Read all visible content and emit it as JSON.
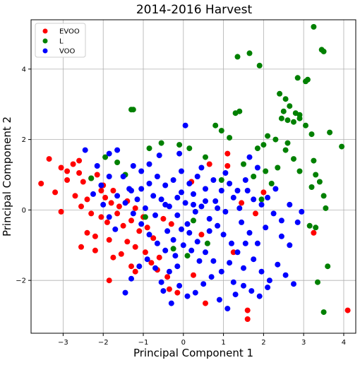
{
  "chart_data": {
    "type": "scatter",
    "title": "2014-2016 Harvest",
    "xlabel": "Principal Component 1",
    "ylabel": "Principal Component 2",
    "xlim": [
      -3.8,
      4.3
    ],
    "ylim": [
      -3.5,
      5.4
    ],
    "xticks": [
      -3,
      -2,
      -1,
      0,
      1,
      2,
      3,
      4
    ],
    "yticks": [
      -2,
      0,
      2,
      4
    ],
    "grid": true,
    "legend_position": "top-left",
    "series": [
      {
        "name": "EVOO",
        "color": "#ff0000",
        "points": [
          [
            -3.35,
            1.45
          ],
          [
            -3.05,
            1.2
          ],
          [
            -2.9,
            1.1
          ],
          [
            -2.75,
            1.3
          ],
          [
            -2.6,
            1.05
          ],
          [
            -2.9,
            0.85
          ],
          [
            -2.5,
            0.8
          ],
          [
            -2.3,
            0.9
          ],
          [
            -2.15,
            1.0
          ],
          [
            -2.7,
            0.4
          ],
          [
            -2.4,
            0.3
          ],
          [
            -2.05,
            0.55
          ],
          [
            -1.95,
            0.35
          ],
          [
            -1.8,
            0.2
          ],
          [
            -2.3,
            -0.1
          ],
          [
            -2.05,
            -0.2
          ],
          [
            -1.9,
            -0.35
          ],
          [
            -1.65,
            -0.1
          ],
          [
            -1.5,
            -0.45
          ],
          [
            -1.3,
            -0.3
          ],
          [
            -1.1,
            -0.6
          ],
          [
            -0.9,
            -0.5
          ],
          [
            -0.75,
            -0.8
          ],
          [
            -1.4,
            -0.9
          ],
          [
            -1.2,
            -1.05
          ],
          [
            -0.95,
            -1.2
          ],
          [
            -0.8,
            -1.5
          ],
          [
            -0.6,
            -1.35
          ],
          [
            -1.6,
            0.1
          ],
          [
            -1.4,
            0.25
          ],
          [
            -1.2,
            0.05
          ],
          [
            -1.0,
            -0.2
          ],
          [
            -2.4,
            -0.65
          ],
          [
            -2.2,
            -0.75
          ],
          [
            -1.85,
            -0.85
          ],
          [
            -1.75,
            -1.35
          ],
          [
            -1.55,
            -1.25
          ],
          [
            -1.3,
            -1.6
          ],
          [
            -0.65,
            -1.7
          ],
          [
            -0.4,
            -1.9
          ],
          [
            -0.35,
            -2.25
          ],
          [
            -0.15,
            -2.35
          ],
          [
            0.55,
            -2.65
          ],
          [
            0.25,
            -1.85
          ],
          [
            -1.2,
            -1.75
          ],
          [
            -2.2,
            -1.15
          ],
          [
            -1.85,
            -2.0
          ],
          [
            -3.55,
            0.75
          ],
          [
            -3.05,
            -0.05
          ],
          [
            -3.2,
            0.5
          ],
          [
            -2.55,
            0.1
          ],
          [
            -2.0,
            0.7
          ],
          [
            1.1,
            1.6
          ],
          [
            1.1,
            1.25
          ],
          [
            0.65,
            1.3
          ],
          [
            0.45,
            -0.7
          ],
          [
            1.25,
            -1.2
          ],
          [
            1.8,
            -0.1
          ],
          [
            2.0,
            0.5
          ],
          [
            1.6,
            -2.85
          ],
          [
            1.6,
            -3.1
          ],
          [
            3.25,
            -0.65
          ],
          [
            4.1,
            -2.85
          ],
          [
            -2.55,
            -1.05
          ],
          [
            -0.5,
            -0.25
          ],
          [
            0.2,
            0.8
          ],
          [
            1.45,
            0.2
          ],
          [
            -1.75,
            0.55
          ],
          [
            -2.6,
            1.4
          ],
          [
            -0.3,
            -0.4
          ]
        ]
      },
      {
        "name": "L",
        "color": "#008000",
        "points": [
          [
            3.25,
            5.2
          ],
          [
            3.45,
            4.55
          ],
          [
            3.5,
            4.5
          ],
          [
            1.65,
            4.45
          ],
          [
            1.35,
            4.35
          ],
          [
            1.9,
            4.1
          ],
          [
            2.85,
            3.75
          ],
          [
            3.05,
            3.65
          ],
          [
            3.1,
            3.7
          ],
          [
            2.4,
            3.3
          ],
          [
            2.55,
            3.15
          ],
          [
            2.65,
            2.95
          ],
          [
            2.5,
            2.8
          ],
          [
            2.8,
            2.75
          ],
          [
            2.9,
            2.7
          ],
          [
            2.45,
            2.6
          ],
          [
            2.6,
            2.55
          ],
          [
            2.75,
            2.5
          ],
          [
            2.9,
            2.6
          ],
          [
            3.05,
            2.4
          ],
          [
            1.3,
            2.75
          ],
          [
            1.4,
            2.8
          ],
          [
            -1.3,
            2.85
          ],
          [
            -1.25,
            2.85
          ],
          [
            0.8,
            2.4
          ],
          [
            0.95,
            2.25
          ],
          [
            1.15,
            2.05
          ],
          [
            2.1,
            2.1
          ],
          [
            2.3,
            2.0
          ],
          [
            3.2,
            2.15
          ],
          [
            3.65,
            2.2
          ],
          [
            3.95,
            1.8
          ],
          [
            1.5,
            1.3
          ],
          [
            1.85,
            1.75
          ],
          [
            2.0,
            1.85
          ],
          [
            2.55,
            1.7
          ],
          [
            2.75,
            1.45
          ],
          [
            2.9,
            1.1
          ],
          [
            3.25,
            1.4
          ],
          [
            3.3,
            1.0
          ],
          [
            3.4,
            0.8
          ],
          [
            3.5,
            0.4
          ],
          [
            3.55,
            0.05
          ],
          [
            3.15,
            -0.45
          ],
          [
            3.3,
            -0.5
          ],
          [
            3.6,
            -1.6
          ],
          [
            3.5,
            -2.9
          ],
          [
            3.35,
            -2.05
          ],
          [
            -0.85,
            1.75
          ],
          [
            -0.55,
            1.9
          ],
          [
            -0.1,
            1.85
          ],
          [
            0.15,
            1.75
          ],
          [
            -1.95,
            1.5
          ],
          [
            -1.65,
            1.35
          ],
          [
            -2.3,
            0.9
          ],
          [
            -0.25,
            -1.1
          ],
          [
            0.25,
            -0.3
          ],
          [
            0.6,
            -0.95
          ],
          [
            2.2,
            0.75
          ],
          [
            2.35,
            1.2
          ],
          [
            3.2,
            0.65
          ],
          [
            2.6,
            1.9
          ],
          [
            0.95,
            0.85
          ],
          [
            -1.45,
            1.0
          ],
          [
            -0.95,
            -0.2
          ],
          [
            0.1,
            -1.3
          ],
          [
            1.75,
            0.95
          ],
          [
            1.95,
            0.3
          ],
          [
            2.05,
            1.1
          ],
          [
            0.55,
            1.5
          ]
        ]
      },
      {
        "name": "VOO",
        "color": "#0000ff",
        "points": [
          [
            0.05,
            2.4
          ],
          [
            -0.1,
            1.6
          ],
          [
            -1.05,
            0.6
          ],
          [
            -0.75,
            0.4
          ],
          [
            -0.55,
            0.3
          ],
          [
            -0.35,
            0.1
          ],
          [
            -0.15,
            -0.15
          ],
          [
            0.05,
            0.2
          ],
          [
            0.25,
            0.45
          ],
          [
            0.45,
            0.1
          ],
          [
            0.65,
            -0.25
          ],
          [
            0.85,
            -0.45
          ],
          [
            1.05,
            -0.05
          ],
          [
            1.25,
            0.35
          ],
          [
            1.45,
            -0.35
          ],
          [
            1.65,
            -0.65
          ],
          [
            1.85,
            -0.95
          ],
          [
            2.05,
            -0.5
          ],
          [
            2.25,
            -0.1
          ],
          [
            2.45,
            -0.75
          ],
          [
            2.65,
            -1.0
          ],
          [
            2.85,
            -0.35
          ],
          [
            -1.25,
            1.25
          ],
          [
            -1.05,
            1.1
          ],
          [
            -0.85,
            1.3
          ],
          [
            -0.65,
            0.95
          ],
          [
            -0.45,
            0.7
          ],
          [
            -0.25,
            0.85
          ],
          [
            -0.05,
            0.5
          ],
          [
            0.15,
            0.75
          ],
          [
            0.35,
            0.95
          ],
          [
            0.55,
            0.6
          ],
          [
            0.75,
            0.85
          ],
          [
            0.95,
            0.55
          ],
          [
            1.15,
            0.75
          ],
          [
            1.35,
            0.55
          ],
          [
            1.55,
            0.85
          ],
          [
            1.75,
            0.3
          ],
          [
            1.95,
            0.15
          ],
          [
            -2.45,
            1.7
          ],
          [
            -2.15,
            1.25
          ],
          [
            -1.85,
            1.6
          ],
          [
            -1.65,
            1.7
          ],
          [
            -1.5,
            0.95
          ],
          [
            -1.35,
            0.6
          ],
          [
            -1.85,
            0.95
          ],
          [
            -2.05,
            0.7
          ],
          [
            -1.65,
            0.4
          ],
          [
            -1.45,
            0.2
          ],
          [
            -1.25,
            -0.1
          ],
          [
            -1.05,
            -0.4
          ],
          [
            -0.85,
            -0.7
          ],
          [
            -0.65,
            -0.95
          ],
          [
            -0.45,
            -1.15
          ],
          [
            -0.25,
            -0.85
          ],
          [
            -0.05,
            -0.55
          ],
          [
            0.15,
            -0.65
          ],
          [
            0.35,
            -0.9
          ],
          [
            0.55,
            -1.2
          ],
          [
            0.75,
            -1.45
          ],
          [
            0.95,
            -1.75
          ],
          [
            1.15,
            -1.5
          ],
          [
            1.35,
            -1.2
          ],
          [
            1.55,
            -0.95
          ],
          [
            1.75,
            -1.4
          ],
          [
            1.95,
            -1.75
          ],
          [
            2.15,
            -2.0
          ],
          [
            2.35,
            -1.55
          ],
          [
            2.55,
            -1.85
          ],
          [
            2.75,
            -2.1
          ],
          [
            -0.15,
            -1.6
          ],
          [
            -0.35,
            -1.75
          ],
          [
            -0.55,
            -2.05
          ],
          [
            -0.1,
            -2.15
          ],
          [
            0.1,
            -2.45
          ],
          [
            0.3,
            -2.35
          ],
          [
            0.5,
            -2.1
          ],
          [
            0.7,
            -1.9
          ],
          [
            0.9,
            -2.55
          ],
          [
            1.1,
            -2.8
          ],
          [
            1.3,
            -2.4
          ],
          [
            1.5,
            -2.15
          ],
          [
            1.7,
            -2.3
          ],
          [
            1.9,
            -2.45
          ],
          [
            2.1,
            -2.2
          ],
          [
            -1.45,
            -2.35
          ],
          [
            -1.3,
            -1.95
          ],
          [
            -1.1,
            -1.6
          ],
          [
            -0.9,
            -1.4
          ],
          [
            -0.7,
            -1.65
          ],
          [
            -0.5,
            -2.3
          ],
          [
            -0.3,
            -2.65
          ],
          [
            0.55,
            0.25
          ],
          [
            0.25,
            0.15
          ],
          [
            -0.15,
            0.35
          ],
          [
            -0.45,
            0.15
          ],
          [
            -0.7,
            -0.15
          ],
          [
            -0.95,
            0.05
          ],
          [
            -1.15,
            0.3
          ],
          [
            0.1,
            -0.4
          ],
          [
            0.3,
            -0.05
          ],
          [
            0.8,
            0.25
          ],
          [
            1.0,
            -0.7
          ],
          [
            1.2,
            -0.95
          ],
          [
            1.4,
            0.05
          ],
          [
            1.6,
            0.55
          ],
          [
            2.1,
            0.35
          ],
          [
            2.3,
            0.6
          ],
          [
            1.85,
            1.2
          ],
          [
            1.65,
            1.5
          ],
          [
            1.05,
            1.05
          ],
          [
            0.45,
            1.2
          ],
          [
            -0.05,
            1.1
          ],
          [
            -0.6,
            1.55
          ],
          [
            -1.7,
            -0.55
          ],
          [
            -1.85,
            -0.2
          ],
          [
            -2.0,
            0.15
          ],
          [
            -2.25,
            0.45
          ],
          [
            0.0,
            -1.0
          ],
          [
            0.2,
            -1.15
          ],
          [
            0.4,
            -1.45
          ],
          [
            -0.2,
            -1.3
          ],
          [
            -0.4,
            -0.6
          ],
          [
            1.5,
            -1.65
          ],
          [
            2.45,
            -0.3
          ],
          [
            2.65,
            0.15
          ],
          [
            2.95,
            -0.05
          ],
          [
            1.25,
            -2.05
          ],
          [
            0.65,
            -0.6
          ],
          [
            -0.85,
            0.75
          ],
          [
            -1.3,
            0.55
          ],
          [
            0.85,
            0.05
          ]
        ]
      }
    ]
  }
}
